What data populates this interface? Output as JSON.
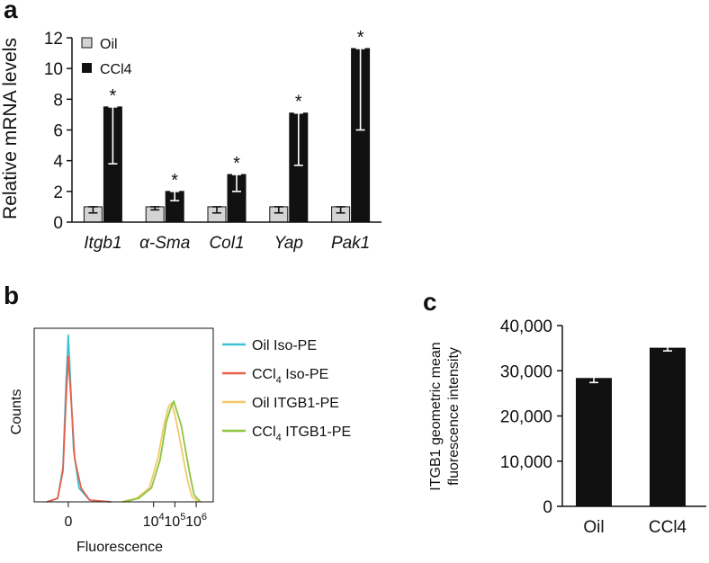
{
  "panels": {
    "a": "a",
    "b": "b",
    "c": "c"
  },
  "chart_data": [
    {
      "id": "a",
      "type": "bar",
      "ylabel": "Relative mRNA levels",
      "ylim": [
        0,
        12
      ],
      "yticks": [
        0,
        2,
        4,
        6,
        8,
        10,
        12
      ],
      "categories": [
        "Itgb1",
        "α-Sma",
        "Col1",
        "Yap",
        "Pak1"
      ],
      "legend": {
        "position": "top-left"
      },
      "series": [
        {
          "name": "Oil",
          "color": "#d4d4d4",
          "values": [
            1,
            1,
            1,
            1,
            1
          ],
          "err_low": [
            0.6,
            0.8,
            0.6,
            0.6,
            0.6
          ],
          "err_high": [
            1.0,
            1.0,
            1.0,
            1.0,
            1.0
          ]
        },
        {
          "name": "CCl4",
          "color": "#111111",
          "values": [
            7.5,
            2.0,
            3.1,
            7.1,
            11.3
          ],
          "err_low": [
            3.8,
            1.4,
            2.0,
            3.7,
            6.0
          ],
          "err_high": [
            7.5,
            2.0,
            3.1,
            7.1,
            11.3
          ]
        }
      ],
      "annotation": "*",
      "annotated_categories": [
        "Itgb1",
        "α-Sma",
        "Col1",
        "Yap",
        "Pak1"
      ]
    },
    {
      "id": "b",
      "type": "line",
      "title": "",
      "xlabel": "Fluorescence",
      "ylabel": "Counts",
      "x_scale": "log-decades",
      "xticks": [
        {
          "label": "0",
          "decade": 0
        },
        {
          "label": "10",
          "sup": "4",
          "decade": 4
        },
        {
          "label": "10",
          "sup": "5",
          "decade": 5
        },
        {
          "label": "10",
          "sup": "6",
          "decade": 6
        }
      ],
      "xlim": [
        -1.6,
        6.8
      ],
      "ylim": [
        0,
        100
      ],
      "legend": {
        "position": "right"
      },
      "series": [
        {
          "name_main": "Oil Iso-PE",
          "name_sub": "",
          "name_tail": "",
          "color": "#3cc3d4",
          "x": [
            -1.0,
            -0.5,
            -0.25,
            -0.1,
            0.0,
            0.1,
            0.25,
            0.5,
            1.0,
            2.0
          ],
          "y": [
            0,
            2,
            20,
            70,
            96,
            70,
            30,
            8,
            1,
            0
          ]
        },
        {
          "name_main": "CCl",
          "name_sub": "4",
          "name_tail": " Iso-PE",
          "color": "#e8604a",
          "x": [
            -1.0,
            -0.5,
            -0.25,
            -0.1,
            0.0,
            0.15,
            0.3,
            0.6,
            1.0,
            2.0
          ],
          "y": [
            0,
            2,
            18,
            60,
            84,
            55,
            25,
            8,
            1,
            0
          ]
        },
        {
          "name_main": "Oil ITGB1-PE",
          "name_sub": "",
          "name_tail": "",
          "color": "#f2c96a",
          "x": [
            2.5,
            3.2,
            3.8,
            4.2,
            4.5,
            4.7,
            4.85,
            5.0,
            5.2,
            5.4,
            5.6,
            5.8,
            6.1
          ],
          "y": [
            0,
            2,
            8,
            25,
            45,
            55,
            57,
            50,
            38,
            25,
            12,
            3,
            0
          ]
        },
        {
          "name_main": "CCl",
          "name_sub": "4",
          "name_tail": " ITGB1-PE",
          "color": "#8cc63e",
          "x": [
            2.6,
            3.3,
            3.9,
            4.3,
            4.6,
            4.8,
            4.95,
            5.1,
            5.3,
            5.5,
            5.7,
            5.9,
            6.2
          ],
          "y": [
            0,
            2,
            8,
            24,
            46,
            54,
            58,
            52,
            44,
            30,
            16,
            4,
            0
          ]
        }
      ]
    },
    {
      "id": "c",
      "type": "bar",
      "ylabel_lines": [
        "ITGB1 geometric mean",
        "fluorescence intensity"
      ],
      "ylim": [
        0,
        40000
      ],
      "ytick_values": [
        0,
        10000,
        20000,
        30000,
        40000
      ],
      "ytick_labels": [
        "0",
        "10,000",
        "20,000",
        "30,000",
        "40,000"
      ],
      "categories": [
        "Oil",
        "CCl4"
      ],
      "values": [
        28400,
        35100
      ],
      "errors": [
        1000,
        700
      ],
      "color": "#111111"
    }
  ]
}
